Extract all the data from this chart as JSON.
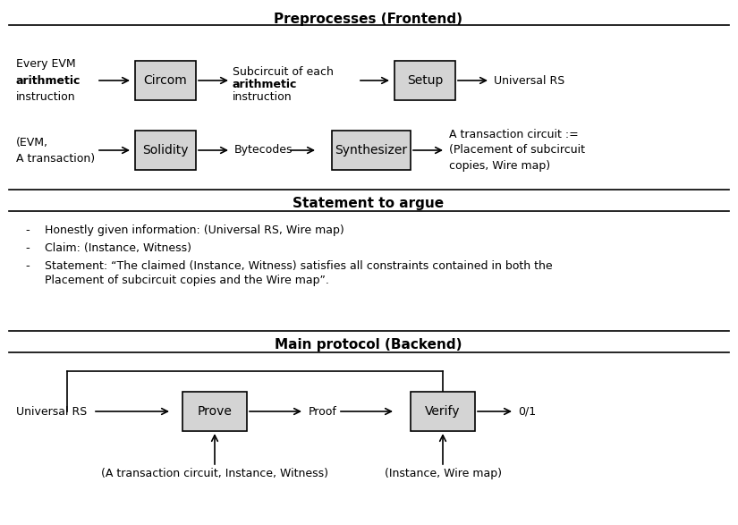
{
  "title1": "Preprocesses (Frontend)",
  "title2": "Statement to argue",
  "title3": "Main protocol (Backend)",
  "bullet1": "Honestly given information: (Universal RS, Wire map)",
  "bullet2": "Claim: (Instance, Witness)",
  "bullet3a": "Statement: “The claimed (Instance, Witness) satisfies all constraints contained in both the",
  "bullet3b": "Placement of subcircuit copies and the Wire map”.",
  "box_facecolor": "#d4d4d4",
  "box_edgecolor": "#000000",
  "bg_color": "#ffffff",
  "text_color": "#000000",
  "line_color": "#000000",
  "fig_w": 8.25,
  "fig_h": 5.87,
  "dpi": 100
}
